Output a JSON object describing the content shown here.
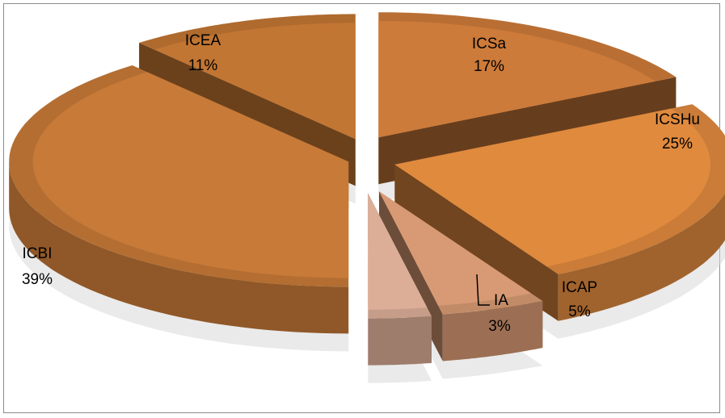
{
  "chart_data": {
    "type": "pie",
    "style": "3d-exploded",
    "title": "",
    "legend": "none",
    "slices": [
      {
        "name": "ICSa",
        "value": 17,
        "label": "17%",
        "color": "#cd7b3a"
      },
      {
        "name": "ICSHu",
        "value": 25,
        "label": "25%",
        "color": "#e08a3e"
      },
      {
        "name": "ICAP",
        "value": 5,
        "label": "5%",
        "color": "#d89a74"
      },
      {
        "name": "IA",
        "value": 3,
        "label": "3%",
        "color": "#dcae98"
      },
      {
        "name": "ICBI",
        "value": 39,
        "label": "39%",
        "color": "#c87a38"
      },
      {
        "name": "ICEA",
        "value": 11,
        "label": "11%",
        "color": "#c27633"
      }
    ]
  },
  "colors": {
    "inner_face": "#6e5a52",
    "shadow": "#d9d9d9",
    "frame_border": "#8c8c8c"
  }
}
